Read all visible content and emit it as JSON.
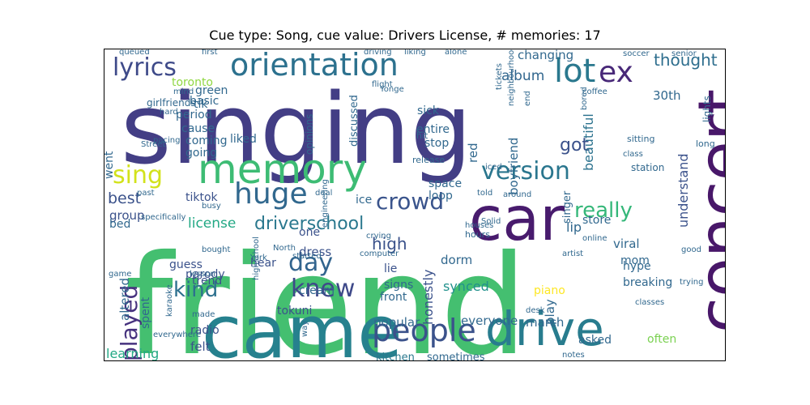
{
  "title": "Cue type: Song, cue value: Drivers License, # memories: 17",
  "words": [
    {
      "text": "singing",
      "color": "#433e85"
    },
    {
      "text": "friend",
      "color": "#44bf70"
    },
    {
      "text": "came",
      "color": "#26818e"
    },
    {
      "text": "car",
      "color": "#481b6d"
    },
    {
      "text": "concert",
      "color": "#481769"
    },
    {
      "text": "orientation",
      "color": "#2c718e"
    },
    {
      "text": "memory",
      "color": "#3dbc74"
    },
    {
      "text": "drive",
      "color": "#287c8e"
    },
    {
      "text": "people",
      "color": "#3b528b"
    },
    {
      "text": "huge",
      "color": "#31688e"
    },
    {
      "text": "lyrics",
      "color": "#3e4a89"
    },
    {
      "text": "lot",
      "color": "#2a788e"
    },
    {
      "text": "ex",
      "color": "#482878"
    },
    {
      "text": "crowd",
      "color": "#3a548c"
    },
    {
      "text": "sing",
      "color": "#d2e21b"
    },
    {
      "text": "version",
      "color": "#2a768e"
    },
    {
      "text": "day",
      "color": "#32648e"
    },
    {
      "text": "knew",
      "color": "#3e4989"
    },
    {
      "text": "kind",
      "color": "#2d708e"
    },
    {
      "text": "played",
      "color": "#46327e"
    },
    {
      "text": "really",
      "color": "#35b779"
    },
    {
      "text": "driverschool",
      "color": "#2a788e"
    },
    {
      "text": "thought",
      "color": "#2e6e8e"
    },
    {
      "text": "album",
      "color": "#31668e"
    },
    {
      "text": "toronto",
      "color": "#90d743"
    },
    {
      "text": "30th",
      "color": "#31688e"
    },
    {
      "text": "license",
      "color": "#22a884"
    },
    {
      "text": "tiktok",
      "color": "#3b528b"
    },
    {
      "text": "best",
      "color": "#3b528b"
    },
    {
      "text": "group",
      "color": "#3b528b"
    },
    {
      "text": "got",
      "color": "#3b528b"
    },
    {
      "text": "understand",
      "color": "#3b528b"
    },
    {
      "text": "beautiful",
      "color": "#2c728e"
    },
    {
      "text": "high",
      "color": "#3b528b"
    },
    {
      "text": "parody",
      "color": "#3b528b"
    },
    {
      "text": "guess",
      "color": "#3b528b"
    },
    {
      "text": "hear",
      "color": "#3b528b"
    },
    {
      "text": "dress",
      "color": "#3b528b"
    },
    {
      "text": "one",
      "color": "#3b528b"
    },
    {
      "text": "lie",
      "color": "#3b528b"
    },
    {
      "text": "trend",
      "color": "#3b528b"
    },
    {
      "text": "tokuni",
      "color": "#3b528b"
    },
    {
      "text": "radio",
      "color": "#3b528b"
    },
    {
      "text": "felt",
      "color": "#3b528b"
    },
    {
      "text": "learning",
      "color": "#22a884"
    },
    {
      "text": "kitchen",
      "color": "#2a788e"
    },
    {
      "text": "sometimes",
      "color": "#31688e"
    },
    {
      "text": "everyone",
      "color": "#31688e"
    },
    {
      "text": "popular",
      "color": "#31688e"
    },
    {
      "text": "march",
      "color": "#31688e"
    },
    {
      "text": "asked",
      "color": "#31688e"
    },
    {
      "text": "often",
      "color": "#7ad151"
    },
    {
      "text": "synced",
      "color": "#21918c"
    },
    {
      "text": "front",
      "color": "#31688e"
    },
    {
      "text": "signs",
      "color": "#31688e"
    },
    {
      "text": "honestly",
      "color": "#3b528b"
    },
    {
      "text": "piano",
      "color": "#fde725"
    },
    {
      "text": "play",
      "color": "#31688e"
    },
    {
      "text": "breaking",
      "color": "#31688e"
    },
    {
      "text": "hype",
      "color": "#31688e"
    },
    {
      "text": "viral",
      "color": "#31688e"
    },
    {
      "text": "mom",
      "color": "#31688e"
    },
    {
      "text": "lip",
      "color": "#31688e"
    },
    {
      "text": "store",
      "color": "#31688e"
    },
    {
      "text": "singer",
      "color": "#31688e"
    },
    {
      "text": "dorm",
      "color": "#31688e"
    },
    {
      "text": "altered",
      "color": "#31688e"
    },
    {
      "text": "spent",
      "color": "#31688e"
    },
    {
      "text": "bed",
      "color": "#31688e"
    },
    {
      "text": "cream",
      "color": "#31688e"
    },
    {
      "text": "ice",
      "color": "#31688e"
    },
    {
      "text": "loop",
      "color": "#31688e"
    },
    {
      "text": "space",
      "color": "#31688e"
    },
    {
      "text": "stop",
      "color": "#31688e"
    },
    {
      "text": "entire",
      "color": "#31688e"
    },
    {
      "text": "sick",
      "color": "#31688e"
    },
    {
      "text": "red",
      "color": "#31688e"
    },
    {
      "text": "boyfriend",
      "color": "#31688e"
    },
    {
      "text": "discussed",
      "color": "#31688e"
    },
    {
      "text": "opinions",
      "color": "#31688e"
    },
    {
      "text": "liked",
      "color": "#31688e"
    },
    {
      "text": "going",
      "color": "#31688e"
    },
    {
      "text": "cause",
      "color": "#31688e"
    },
    {
      "text": "coming",
      "color": "#31688e"
    },
    {
      "text": "period",
      "color": "#31688e"
    },
    {
      "text": "tik",
      "color": "#31688e"
    },
    {
      "text": "green",
      "color": "#31688e"
    },
    {
      "text": "basic",
      "color": "#31688e"
    },
    {
      "text": "went",
      "color": "#31688e"
    },
    {
      "text": "girlfriends",
      "color": "#31688e"
    },
    {
      "text": "changing",
      "color": "#31688e"
    },
    {
      "text": "lights",
      "color": "#31688e"
    },
    {
      "text": "long",
      "color": "#31688e"
    },
    {
      "text": "sitting",
      "color": "#31688e"
    },
    {
      "text": "station",
      "color": "#31688e"
    },
    {
      "text": "iced",
      "color": "#31688e"
    },
    {
      "text": "deal",
      "color": "#31688e"
    },
    {
      "text": "hit",
      "color": "#31688e"
    },
    {
      "text": "release",
      "color": "#31688e"
    },
    {
      "text": "around",
      "color": "#31688e"
    },
    {
      "text": "told",
      "color": "#31688e"
    },
    {
      "text": "Solid",
      "color": "#31688e"
    },
    {
      "text": "houses",
      "color": "#31688e"
    },
    {
      "text": "hours",
      "color": "#31688e"
    },
    {
      "text": "crying",
      "color": "#31688e"
    },
    {
      "text": "computer",
      "color": "#31688e"
    },
    {
      "text": "way",
      "color": "#31688e"
    },
    {
      "text": "notes",
      "color": "#31688e"
    },
    {
      "text": "desk",
      "color": "#31688e"
    },
    {
      "text": "classes",
      "color": "#31688e"
    },
    {
      "text": "trying",
      "color": "#31688e"
    },
    {
      "text": "good",
      "color": "#31688e"
    },
    {
      "text": "online",
      "color": "#31688e"
    },
    {
      "text": "artist",
      "color": "#31688e"
    },
    {
      "text": "game",
      "color": "#31688e"
    },
    {
      "text": "lesson",
      "color": "#31688e"
    },
    {
      "text": "karaoke",
      "color": "#31688e"
    },
    {
      "text": "everywhere",
      "color": "#31688e"
    },
    {
      "text": "made",
      "color": "#31688e"
    },
    {
      "text": "bought",
      "color": "#31688e"
    },
    {
      "text": "York",
      "color": "#31688e"
    },
    {
      "text": "North",
      "color": "#31688e"
    },
    {
      "text": "started",
      "color": "#31688e"
    },
    {
      "text": "highschool",
      "color": "#31688e"
    },
    {
      "text": "specifically",
      "color": "#31688e"
    },
    {
      "text": "past",
      "color": "#31688e"
    },
    {
      "text": "busy",
      "color": "#31688e"
    },
    {
      "text": "engineering",
      "color": "#31688e"
    },
    {
      "text": "Street",
      "color": "#31688e"
    },
    {
      "text": "pacing",
      "color": "#31688e"
    },
    {
      "text": "hard",
      "color": "#31688e"
    },
    {
      "text": "mind",
      "color": "#31688e"
    },
    {
      "text": "Yonge",
      "color": "#31688e"
    },
    {
      "text": "flight",
      "color": "#31688e"
    },
    {
      "text": "first",
      "color": "#31688e"
    },
    {
      "text": "driving",
      "color": "#31688e"
    },
    {
      "text": "alone",
      "color": "#31688e"
    },
    {
      "text": "liking",
      "color": "#31688e"
    },
    {
      "text": "queued",
      "color": "#31688e"
    },
    {
      "text": "coffee",
      "color": "#31688e"
    },
    {
      "text": "soccer",
      "color": "#31688e"
    },
    {
      "text": "senior",
      "color": "#31688e"
    },
    {
      "text": "bored",
      "color": "#31688e"
    },
    {
      "text": "tickets",
      "color": "#31688e"
    },
    {
      "text": "neighbourhood",
      "color": "#31688e"
    },
    {
      "text": "end",
      "color": "#31688e"
    },
    {
      "text": "class",
      "color": "#31688e"
    },
    {
      "text": "pushed",
      "color": "#31688e"
    },
    {
      "text": "heart",
      "color": "#31688e"
    }
  ]
}
